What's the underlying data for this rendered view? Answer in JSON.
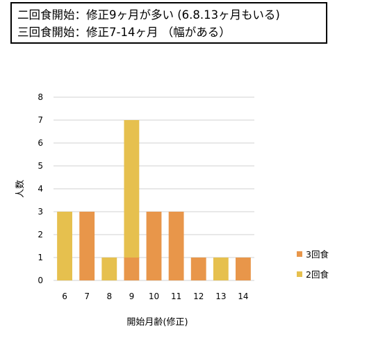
{
  "notes": {
    "line1": "二回食開始：修正9ヶ月が多い (6.8.13ヶ月もいる)",
    "line2": "三回食開始：修正7-14ヶ月 （幅がある）"
  },
  "chart_data": {
    "type": "bar",
    "stacked": true,
    "categories": [
      "6",
      "7",
      "8",
      "9",
      "10",
      "11",
      "12",
      "13",
      "14"
    ],
    "series": [
      {
        "name": "3回食",
        "color": "#e8964a",
        "values": [
          0,
          3,
          0,
          1,
          3,
          3,
          1,
          0,
          1
        ]
      },
      {
        "name": "2回食",
        "color": "#e6c04e",
        "values": [
          3,
          0,
          1,
          6,
          0,
          0,
          0,
          1,
          0
        ]
      }
    ],
    "xlabel": "開始月齢(修正)",
    "ylabel": "人数",
    "ylim": [
      0,
      8
    ],
    "yticks": [
      0,
      1,
      2,
      3,
      4,
      5,
      6,
      7,
      8
    ],
    "grid": true,
    "legend": "right"
  }
}
